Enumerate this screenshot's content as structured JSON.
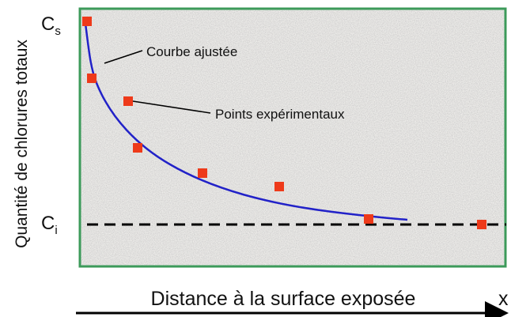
{
  "y_axis": {
    "label": "Quantité de chlorures totaux"
  },
  "x_axis": {
    "label": "Distance à la surface exposée",
    "symbol": "x"
  },
  "levels": {
    "surface": {
      "base": "C",
      "sub": "s"
    },
    "initial": {
      "base": "C",
      "sub": "i"
    }
  },
  "annotations": {
    "curve": "Courbe ajustée",
    "points": "Points expérimentaux"
  }
}
